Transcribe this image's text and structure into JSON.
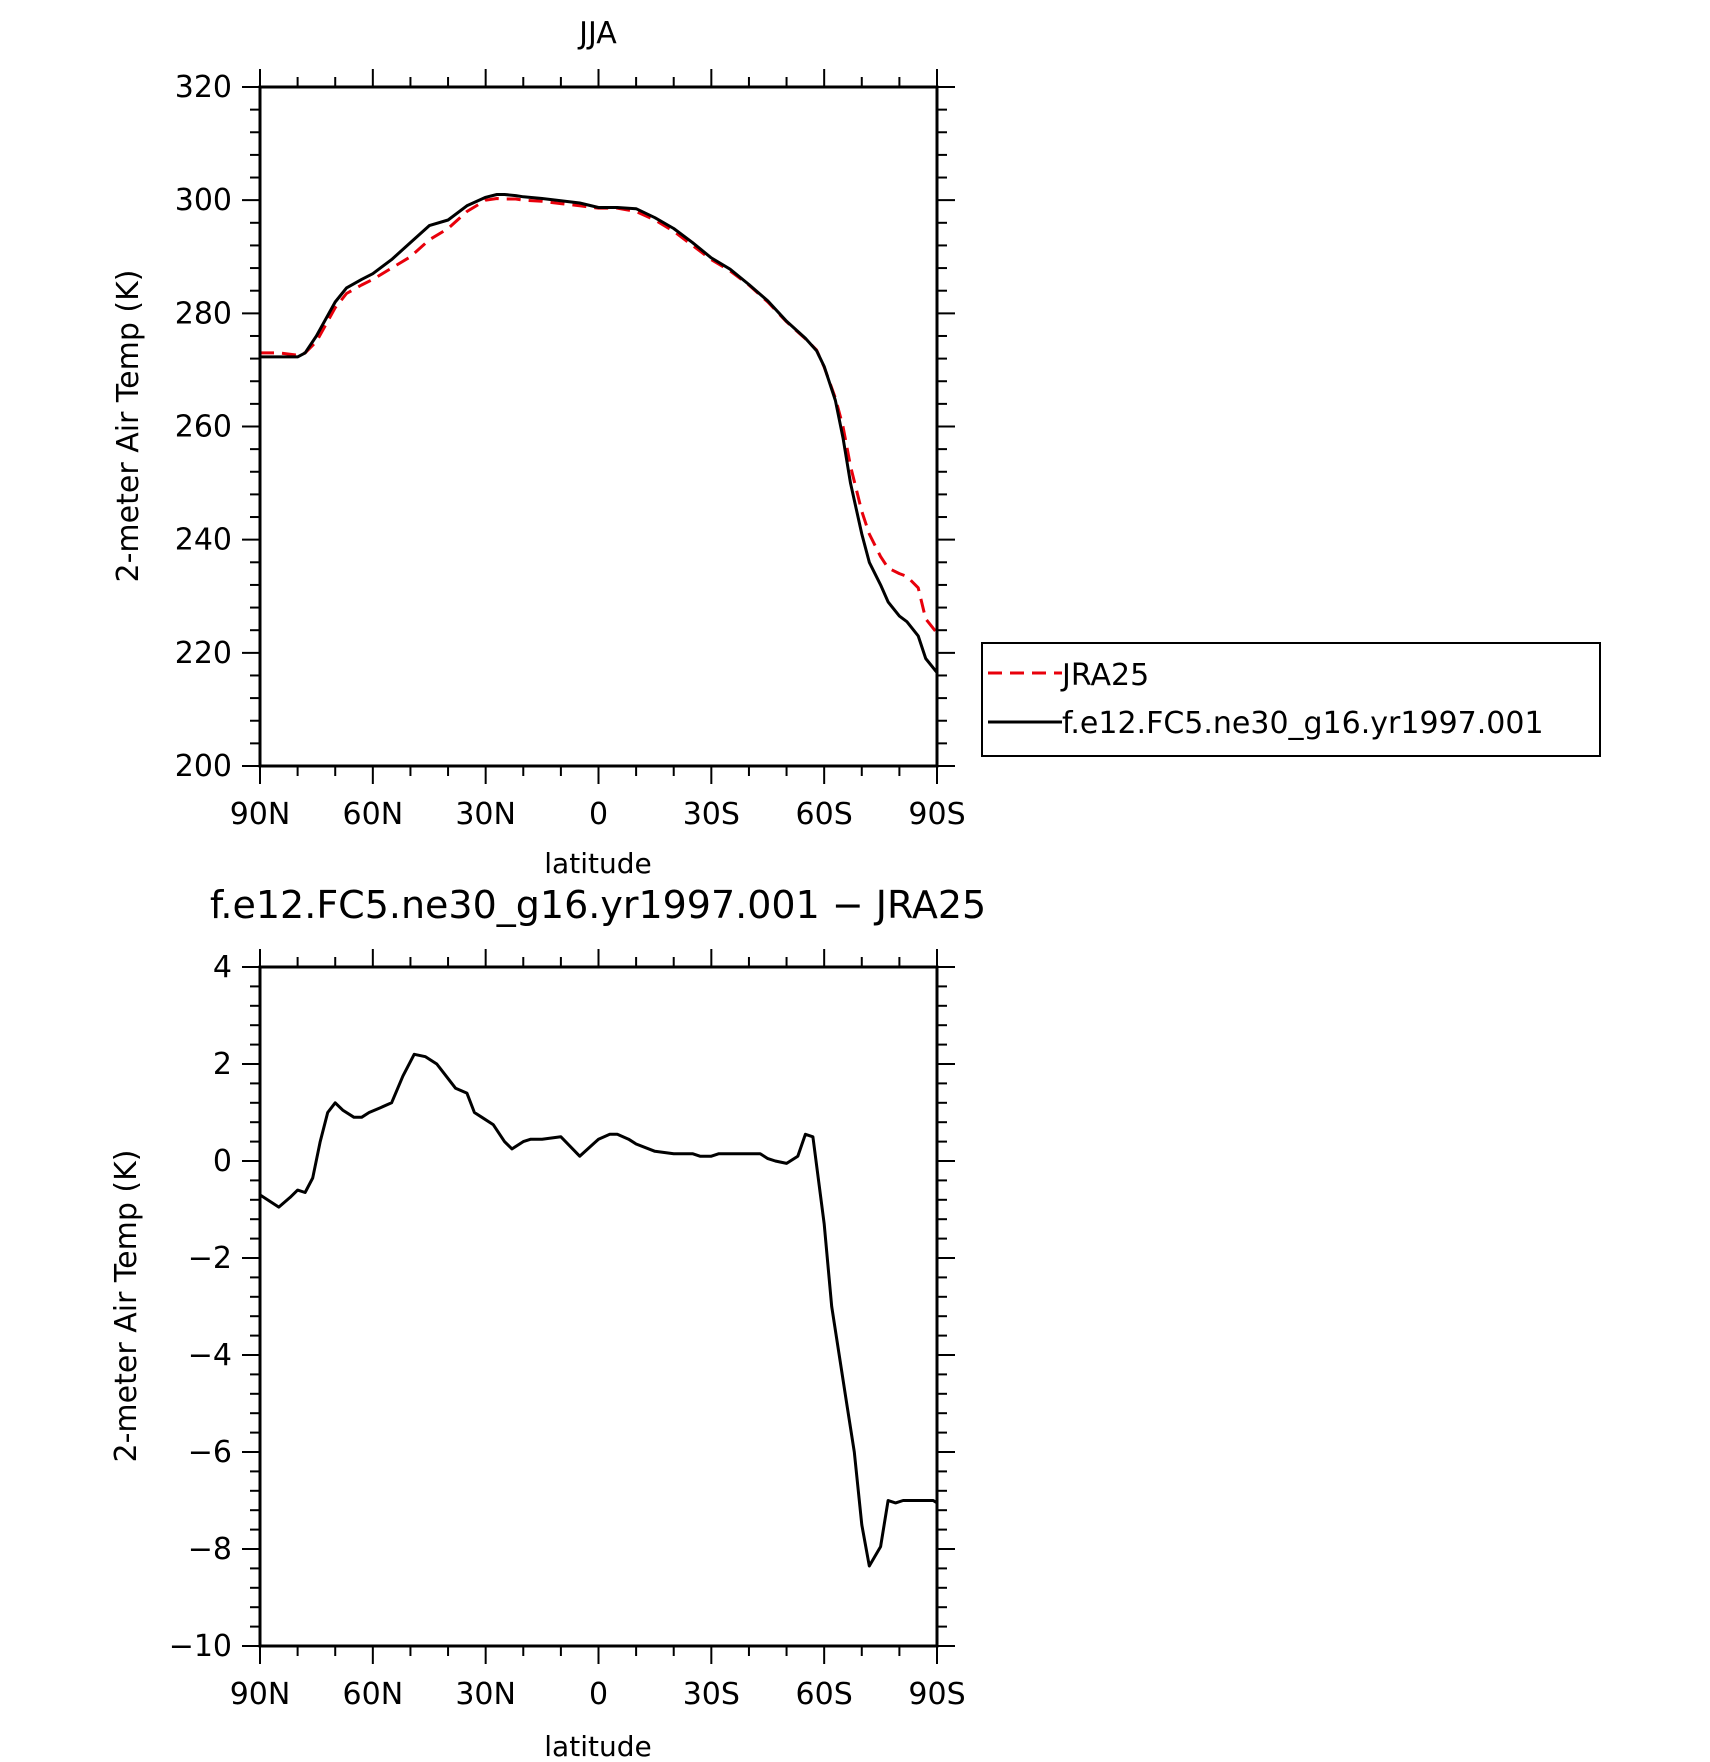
{
  "chart_data": [
    {
      "type": "line",
      "title": "JJA",
      "xlabel": "latitude",
      "ylabel": "2-meter Air Temp (K)",
      "xlim": [
        90,
        -90
      ],
      "ylim": [
        200,
        320
      ],
      "xticks": [
        {
          "value": 90,
          "label": "90N"
        },
        {
          "value": 60,
          "label": "60N"
        },
        {
          "value": 30,
          "label": "30N"
        },
        {
          "value": 0,
          "label": "0"
        },
        {
          "value": -30,
          "label": "30S"
        },
        {
          "value": -60,
          "label": "60S"
        },
        {
          "value": -90,
          "label": "90S"
        }
      ],
      "yticks": [
        "200",
        "220",
        "240",
        "260",
        "280",
        "300",
        "320"
      ],
      "legend_position": "right",
      "series": [
        {
          "name": "JRA25",
          "color": "#e8000b",
          "dash": "dashed",
          "x": [
            90,
            85,
            80,
            78,
            75,
            70,
            67,
            63,
            60,
            55,
            50,
            45,
            40,
            35,
            30,
            27,
            25,
            22,
            20,
            15,
            10,
            5,
            0,
            -5,
            -10,
            -15,
            -20,
            -25,
            -30,
            -35,
            -40,
            -45,
            -50,
            -55,
            -58,
            -60,
            -63,
            -65,
            -67,
            -70,
            -72,
            -75,
            -77,
            -80,
            -82,
            -85,
            -87,
            -90
          ],
          "y": [
            273,
            273,
            272.6,
            273,
            275,
            281,
            283.5,
            285,
            286,
            288,
            290,
            293,
            295,
            298,
            300,
            300.3,
            300.2,
            300.2,
            300,
            299.8,
            299.4,
            299,
            298.6,
            298.6,
            298,
            296.5,
            294.5,
            292,
            289.5,
            287.5,
            285,
            282,
            278.5,
            275.5,
            273.5,
            270.5,
            265,
            260,
            253,
            245,
            241,
            237,
            235,
            234,
            233.5,
            231.5,
            226,
            223.5
          ]
        },
        {
          "name": "f.e12.FC5.ne30_g16.yr1997.001",
          "color": "#000000",
          "dash": "solid",
          "x": [
            90,
            85,
            80,
            78,
            75,
            70,
            67,
            63,
            60,
            55,
            50,
            45,
            40,
            35,
            30,
            27,
            25,
            22,
            20,
            15,
            10,
            5,
            0,
            -5,
            -10,
            -15,
            -20,
            -25,
            -30,
            -35,
            -40,
            -45,
            -50,
            -55,
            -58,
            -60,
            -63,
            -65,
            -67,
            -70,
            -72,
            -75,
            -77,
            -80,
            -82,
            -85,
            -87,
            -90
          ],
          "y": [
            272.3,
            272.3,
            272.3,
            273,
            276,
            282,
            284.5,
            286,
            287,
            289.5,
            292.5,
            295.5,
            296.5,
            299,
            300.5,
            301,
            301,
            300.8,
            300.6,
            300.3,
            299.9,
            299.5,
            298.7,
            298.7,
            298.5,
            296.9,
            295,
            292.5,
            289.8,
            287.8,
            285.1,
            282.2,
            278.6,
            275.6,
            273.4,
            270.6,
            264.6,
            258,
            250,
            241,
            236,
            232,
            229,
            226.5,
            225.5,
            223,
            219,
            216.5
          ]
        }
      ]
    },
    {
      "type": "line",
      "title": "f.e12.FC5.ne30_g16.yr1997.001 − JRA25",
      "xlabel": "latitude",
      "ylabel": "2-meter Air Temp (K)",
      "xlim": [
        90,
        -90
      ],
      "ylim": [
        -10,
        4
      ],
      "xticks": [
        {
          "value": 90,
          "label": "90N"
        },
        {
          "value": 60,
          "label": "60N"
        },
        {
          "value": 30,
          "label": "30N"
        },
        {
          "value": 0,
          "label": "0"
        },
        {
          "value": -30,
          "label": "30S"
        },
        {
          "value": -60,
          "label": "60S"
        },
        {
          "value": -90,
          "label": "90S"
        }
      ],
      "yticks": [
        "−10",
        "−8",
        "−6",
        "−4",
        "−2",
        "0",
        "2",
        "4"
      ],
      "series": [
        {
          "color": "#000000",
          "dash": "solid",
          "x": [
            90,
            85,
            82,
            80,
            78,
            76,
            74,
            72,
            70,
            68,
            65,
            63,
            61,
            58,
            55,
            52,
            49,
            46,
            43,
            41,
            38,
            35,
            33,
            31,
            28,
            25,
            23,
            20,
            18,
            15,
            10,
            5,
            0,
            -3,
            -5,
            -8,
            -10,
            -15,
            -20,
            -25,
            -27,
            -30,
            -32,
            -35,
            -38,
            -40,
            -43,
            -45,
            -47,
            -50,
            -53,
            -55,
            -57,
            -60,
            -62,
            -64,
            -66,
            -68,
            -70,
            -72,
            -75,
            -77,
            -79,
            -81,
            -83,
            -85,
            -87,
            -89,
            -90
          ],
          "y": [
            -0.7,
            -0.95,
            -0.75,
            -0.6,
            -0.65,
            -0.35,
            0.4,
            1.0,
            1.2,
            1.05,
            0.9,
            0.9,
            1.0,
            1.1,
            1.2,
            1.75,
            2.2,
            2.15,
            2.0,
            1.8,
            1.5,
            1.4,
            1.0,
            0.9,
            0.75,
            0.4,
            0.25,
            0.4,
            0.45,
            0.45,
            0.5,
            0.1,
            0.45,
            0.55,
            0.55,
            0.45,
            0.35,
            0.2,
            0.15,
            0.15,
            0.1,
            0.1,
            0.15,
            0.15,
            0.15,
            0.15,
            0.15,
            0.05,
            0.0,
            -0.05,
            0.1,
            0.55,
            0.5,
            -1.3,
            -3.0,
            -4.0,
            -5.0,
            -6.0,
            -7.5,
            -8.35,
            -7.95,
            -7.0,
            -7.05,
            -7.0,
            -7.0,
            -7.0,
            -7.0,
            -7.0,
            -7.05
          ]
        }
      ]
    }
  ]
}
